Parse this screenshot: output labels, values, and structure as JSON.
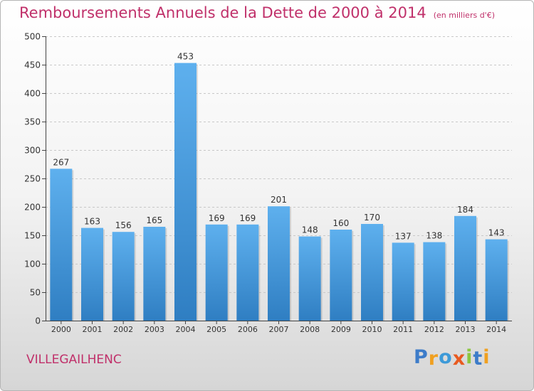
{
  "title": "Remboursements Annuels de la Dette de 2000 à 2014",
  "subtitle": "(en milliers d'€)",
  "commune": "VILLEGAILHENC",
  "logo": {
    "text": "Proxiti",
    "letters": [
      {
        "ch": "P",
        "color": "#3d7cc9"
      },
      {
        "ch": "r",
        "color": "#f0a020"
      },
      {
        "ch": "o",
        "color": "#3d9ad8"
      },
      {
        "ch": "x",
        "color": "#e85a20"
      },
      {
        "ch": "i",
        "color": "#8cc63f"
      },
      {
        "ch": "t",
        "color": "#3d7cc9"
      },
      {
        "ch": "i",
        "color": "#f0a020"
      }
    ]
  },
  "colors": {
    "title": "#c0306a",
    "bar_top": "#5eb0ee",
    "bar_bottom": "#2f7ec2"
  },
  "chart_data": {
    "type": "bar",
    "categories": [
      "2000",
      "2001",
      "2002",
      "2003",
      "2004",
      "2005",
      "2006",
      "2007",
      "2008",
      "2009",
      "2010",
      "2011",
      "2012",
      "2013",
      "2014"
    ],
    "values": [
      267,
      163,
      156,
      165,
      453,
      169,
      169,
      201,
      148,
      160,
      170,
      137,
      138,
      184,
      143
    ],
    "ylim": [
      0,
      500
    ],
    "yticks": [
      0,
      50,
      100,
      150,
      200,
      250,
      300,
      350,
      400,
      450,
      500
    ],
    "grid": true,
    "xlabel": "",
    "ylabel": ""
  }
}
